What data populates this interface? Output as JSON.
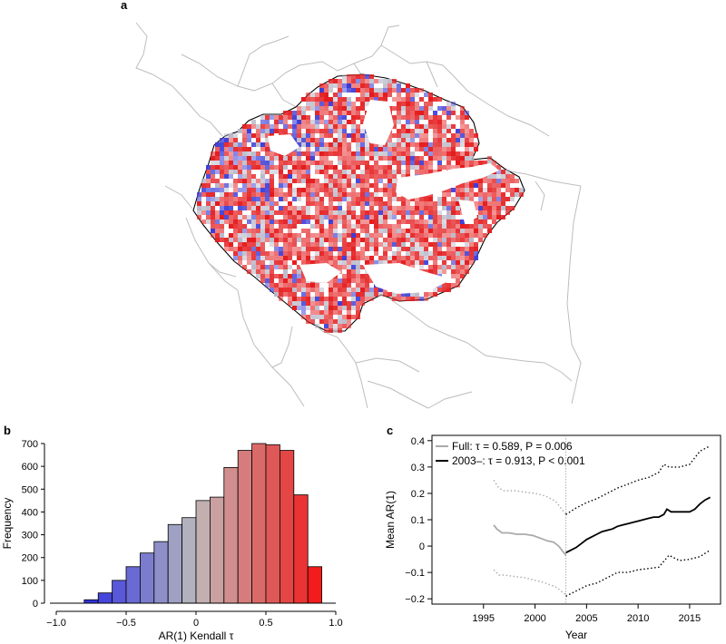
{
  "panels": {
    "a": "a",
    "b": "b",
    "c": "c"
  },
  "chart_data": [
    {
      "type": "heatmap",
      "panel": "a",
      "colors": {
        "positive": "#e41a1c",
        "negative": "#3b3bd6",
        "neutral": "#b9b9c9",
        "outline": "#000000",
        "borders": "#b8b8b8"
      }
    },
    {
      "type": "bar",
      "panel": "b",
      "xlabel": "AR(1) Kendall τ",
      "ylabel": "Frequency",
      "xlim": [
        -1.0,
        1.0
      ],
      "ylim": [
        0,
        700
      ],
      "xticks": [
        "−1.0",
        "−0.5",
        "0",
        "0.5",
        "1.0"
      ],
      "xtick_values": [
        -1.0,
        -0.5,
        0,
        0.5,
        1.0
      ],
      "yticks": [
        0,
        100,
        200,
        300,
        400,
        500,
        600,
        700
      ],
      "bin_width": 0.1,
      "bin_starts": [
        -0.8,
        -0.7,
        -0.6,
        -0.5,
        -0.4,
        -0.3,
        -0.2,
        -0.1,
        0.0,
        0.1,
        0.2,
        0.3,
        0.4,
        0.5,
        0.6,
        0.7,
        0.8
      ],
      "values": [
        15,
        45,
        100,
        160,
        220,
        270,
        345,
        375,
        450,
        465,
        595,
        670,
        700,
        695,
        670,
        475,
        160
      ],
      "colors": [
        "#3434dd",
        "#4646dc",
        "#5858d8",
        "#6a6ad3",
        "#7c7cce",
        "#8e8ec8",
        "#a0a0c3",
        "#b2b2be",
        "#c2b0b0",
        "#caa0a0",
        "#d08e8e",
        "#d67c7c",
        "#da6a6a",
        "#df5858",
        "#e44646",
        "#ea3434",
        "#f21c1c"
      ]
    },
    {
      "type": "line",
      "panel": "c",
      "xlabel": "Year",
      "ylabel": "Mean AR(1)",
      "xlim": [
        1990,
        2018
      ],
      "ylim": [
        -0.22,
        0.42
      ],
      "xticks": [
        1995,
        2000,
        2005,
        2010,
        2015
      ],
      "yticks": [
        -0.2,
        -0.1,
        0,
        0.1,
        0.2,
        0.3,
        0.4
      ],
      "ytick_labels": [
        "−0.2",
        "−0.1",
        "0",
        "0.1",
        "0.2",
        "0.3",
        "0.4"
      ],
      "breakpoint": 2003,
      "legend": [
        {
          "name": "Full: τ = 0.589, P = 0.006",
          "color": "#aaaaaa"
        },
        {
          "name": "2003–: τ = 0.913, P < 0.001",
          "color": "#000000"
        }
      ],
      "legend_position": "top-left",
      "series": [
        {
          "name": "Full: τ = 0.589, P = 0.006",
          "style": "solid",
          "color": "#aaaaaa",
          "x": [
            1996.0,
            1996.3,
            1996.8,
            1997.5,
            1998.2,
            1999.0,
            1999.8,
            2000.5,
            2001.2,
            2001.8,
            2002.3,
            2002.7,
            2003.0
          ],
          "y": [
            0.08,
            0.065,
            0.05,
            0.05,
            0.045,
            0.045,
            0.04,
            0.03,
            0.02,
            0.015,
            0.0,
            -0.02,
            -0.035
          ]
        },
        {
          "name": "2003–: τ = 0.913, P < 0.001",
          "style": "solid",
          "color": "#000000",
          "x": [
            2003.0,
            2003.5,
            2004.0,
            2004.5,
            2005.0,
            2005.5,
            2006.0,
            2006.5,
            2007.0,
            2007.5,
            2008.0,
            2008.5,
            2009.0,
            2009.5,
            2010.0,
            2010.5,
            2011.0,
            2011.5,
            2012.0,
            2012.5,
            2012.8,
            2013.2,
            2013.7,
            2014.3,
            2015.0,
            2015.5,
            2016.0,
            2016.5,
            2017.0
          ],
          "y": [
            -0.025,
            -0.015,
            -0.005,
            0.01,
            0.025,
            0.035,
            0.045,
            0.055,
            0.06,
            0.065,
            0.075,
            0.08,
            0.085,
            0.09,
            0.095,
            0.1,
            0.105,
            0.11,
            0.11,
            0.12,
            0.14,
            0.13,
            0.13,
            0.13,
            0.13,
            0.14,
            0.16,
            0.175,
            0.185
          ]
        },
        {
          "name": "upper band (full)",
          "style": "dotted",
          "color": "#aaaaaa",
          "x": [
            1996.0,
            1996.5,
            1997.0,
            1998.0,
            1999.0,
            2000.0,
            2001.0,
            2002.0,
            2003.0
          ],
          "y": [
            0.25,
            0.22,
            0.21,
            0.21,
            0.205,
            0.2,
            0.19,
            0.17,
            0.12
          ]
        },
        {
          "name": "lower band (full)",
          "style": "dotted",
          "color": "#aaaaaa",
          "x": [
            1996.0,
            1996.5,
            1997.0,
            1998.0,
            1999.0,
            2000.0,
            2001.0,
            2002.0,
            2003.0
          ],
          "y": [
            -0.09,
            -0.11,
            -0.11,
            -0.115,
            -0.12,
            -0.13,
            -0.14,
            -0.155,
            -0.185
          ]
        },
        {
          "name": "upper band (2003–)",
          "style": "dotted",
          "color": "#000000",
          "x": [
            2003.0,
            2004.0,
            2005.0,
            2006.0,
            2007.0,
            2008.0,
            2009.0,
            2010.0,
            2011.0,
            2012.0,
            2012.5,
            2013.0,
            2014.0,
            2015.0,
            2016.0,
            2017.0
          ],
          "y": [
            0.12,
            0.145,
            0.165,
            0.18,
            0.2,
            0.22,
            0.235,
            0.25,
            0.26,
            0.28,
            0.31,
            0.3,
            0.3,
            0.31,
            0.36,
            0.38
          ]
        },
        {
          "name": "lower band (2003–)",
          "style": "dotted",
          "color": "#000000",
          "x": [
            2003.0,
            2004.0,
            2005.0,
            2006.0,
            2007.0,
            2008.0,
            2009.0,
            2010.0,
            2011.0,
            2012.0,
            2013.0,
            2014.0,
            2015.0,
            2016.0,
            2017.0
          ],
          "y": [
            -0.19,
            -0.17,
            -0.15,
            -0.14,
            -0.12,
            -0.1,
            -0.1,
            -0.09,
            -0.085,
            -0.08,
            -0.035,
            -0.055,
            -0.05,
            -0.04,
            -0.015
          ]
        }
      ]
    }
  ]
}
